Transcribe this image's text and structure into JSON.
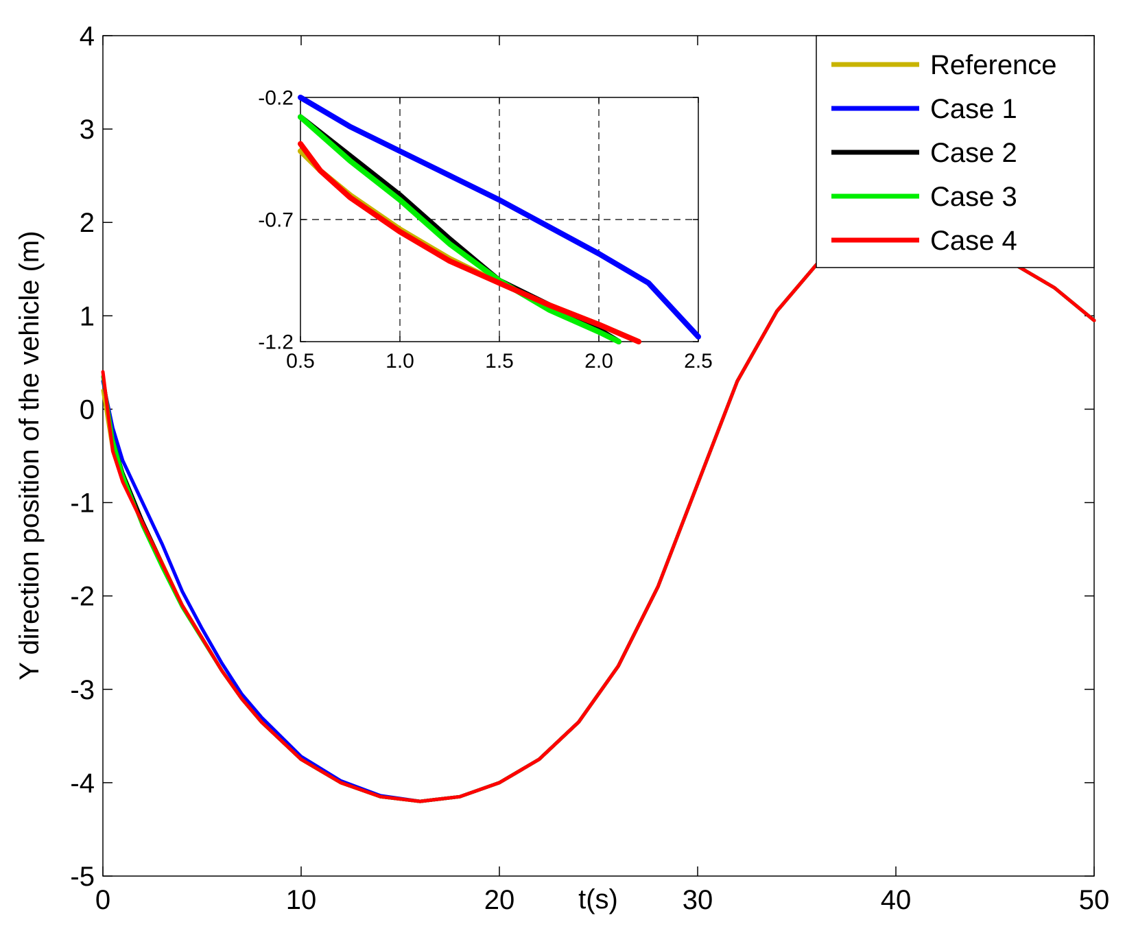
{
  "chart_data": [
    {
      "type": "line",
      "title": "",
      "xlabel": "t(s)",
      "ylabel": "Y direction position of the vehicle (m)",
      "xlim": [
        0,
        50
      ],
      "ylim": [
        -5,
        4
      ],
      "xticks": [
        "0",
        "10",
        "20",
        "30",
        "40",
        "50"
      ],
      "yticks": [
        "4",
        "3",
        "2",
        "1",
        "0",
        "-1",
        "-2",
        "-3",
        "-4",
        "-5"
      ],
      "grid": false,
      "legend_position": "top-right",
      "series": [
        {
          "name": "Reference",
          "color": "#c8b400",
          "x": [
            0,
            0.5,
            1,
            2,
            3,
            4,
            5,
            6,
            7,
            8,
            10,
            12,
            14,
            16,
            18,
            20,
            22,
            24,
            26,
            28,
            30,
            32,
            34,
            36,
            38,
            40,
            42,
            44,
            46,
            48,
            50
          ],
          "y": [
            0.2,
            -0.45,
            -0.75,
            -1.2,
            -1.65,
            -2.1,
            -2.45,
            -2.8,
            -3.1,
            -3.35,
            -3.75,
            -4.0,
            -4.15,
            -4.2,
            -4.15,
            -4.0,
            -3.75,
            -3.35,
            -2.75,
            -1.9,
            -0.8,
            0.3,
            1.05,
            1.55,
            1.8,
            1.85,
            1.8,
            1.7,
            1.55,
            1.3,
            0.95
          ]
        },
        {
          "name": "Case 1",
          "color": "#0000ff",
          "x": [
            0,
            0.5,
            1,
            2,
            3,
            4,
            5,
            6,
            7,
            8,
            10,
            12,
            14,
            16,
            18,
            20,
            22,
            24,
            26,
            28,
            30,
            32,
            34,
            36,
            38,
            40,
            42,
            44,
            46,
            48,
            50
          ],
          "y": [
            0.3,
            -0.2,
            -0.55,
            -1.0,
            -1.45,
            -1.95,
            -2.35,
            -2.72,
            -3.05,
            -3.3,
            -3.72,
            -3.98,
            -4.14,
            -4.2,
            -4.15,
            -4.0,
            -3.75,
            -3.35,
            -2.75,
            -1.9,
            -0.8,
            0.3,
            1.05,
            1.55,
            1.8,
            1.85,
            1.8,
            1.7,
            1.55,
            1.3,
            0.95
          ]
        },
        {
          "name": "Case 2",
          "color": "#000000",
          "x": [
            0,
            0.5,
            1,
            2,
            3,
            4,
            5,
            6,
            7,
            8,
            10,
            12,
            14,
            16,
            18,
            20,
            22,
            24,
            26,
            28,
            30,
            32,
            34,
            36,
            38,
            40,
            42,
            44,
            46,
            48,
            50
          ],
          "y": [
            0.35,
            -0.32,
            -0.68,
            -1.2,
            -1.66,
            -2.1,
            -2.45,
            -2.8,
            -3.1,
            -3.35,
            -3.75,
            -4.0,
            -4.15,
            -4.2,
            -4.15,
            -4.0,
            -3.75,
            -3.35,
            -2.75,
            -1.9,
            -0.8,
            0.3,
            1.05,
            1.55,
            1.8,
            1.85,
            1.8,
            1.7,
            1.55,
            1.3,
            0.95
          ]
        },
        {
          "name": "Case 3",
          "color": "#00ee00",
          "x": [
            0,
            0.5,
            1,
            2,
            3,
            4,
            5,
            6,
            7,
            8,
            10,
            12,
            14,
            16,
            18,
            20,
            22,
            24,
            26,
            28,
            30,
            32,
            34,
            36,
            38,
            40,
            42,
            44,
            46,
            48,
            50
          ],
          "y": [
            0.35,
            -0.32,
            -0.7,
            -1.25,
            -1.7,
            -2.12,
            -2.46,
            -2.8,
            -3.1,
            -3.35,
            -3.75,
            -4.0,
            -4.15,
            -4.2,
            -4.15,
            -4.0,
            -3.75,
            -3.35,
            -2.75,
            -1.9,
            -0.8,
            0.3,
            1.05,
            1.55,
            1.8,
            1.85,
            1.8,
            1.7,
            1.55,
            1.3,
            0.95
          ]
        },
        {
          "name": "Case 4",
          "color": "#ff0000",
          "x": [
            0,
            0.5,
            1,
            2,
            3,
            4,
            5,
            6,
            7,
            8,
            10,
            12,
            14,
            16,
            18,
            20,
            22,
            24,
            26,
            28,
            30,
            32,
            34,
            36,
            38,
            40,
            42,
            44,
            46,
            48,
            50
          ],
          "y": [
            0.4,
            -0.45,
            -0.78,
            -1.22,
            -1.66,
            -2.1,
            -2.45,
            -2.8,
            -3.1,
            -3.35,
            -3.75,
            -4.0,
            -4.15,
            -4.2,
            -4.15,
            -4.0,
            -3.75,
            -3.35,
            -2.75,
            -1.9,
            -0.8,
            0.3,
            1.05,
            1.55,
            1.8,
            1.85,
            1.8,
            1.7,
            1.55,
            1.3,
            0.95
          ]
        }
      ]
    },
    {
      "type": "line",
      "title": "",
      "xlabel": "",
      "ylabel": "",
      "xlim": [
        0.5,
        2.5
      ],
      "ylim": [
        -1.2,
        -0.2
      ],
      "xticks": [
        "0.5",
        "1.0",
        "1.5",
        "2.0",
        "2.5"
      ],
      "yticks": [
        "-0.2",
        "-0.7",
        "-1.2"
      ],
      "grid": true,
      "series": [
        {
          "name": "Reference",
          "color": "#c8b400",
          "x": [
            0.5,
            0.6,
            0.75,
            1.0,
            1.25,
            1.5,
            1.75,
            2.0,
            2.2
          ],
          "y": [
            -0.42,
            -0.5,
            -0.6,
            -0.74,
            -0.86,
            -0.96,
            -1.05,
            -1.13,
            -1.2
          ]
        },
        {
          "name": "Case 1",
          "color": "#0000ff",
          "x": [
            0.5,
            0.75,
            1.0,
            1.25,
            1.5,
            1.75,
            2.0,
            2.25,
            2.5
          ],
          "y": [
            -0.2,
            -0.32,
            -0.42,
            -0.52,
            -0.62,
            -0.73,
            -0.84,
            -0.96,
            -1.18
          ]
        },
        {
          "name": "Case 2",
          "color": "#000000",
          "x": [
            0.5,
            0.75,
            1.0,
            1.25,
            1.5,
            1.75,
            2.0,
            2.1
          ],
          "y": [
            -0.28,
            -0.44,
            -0.6,
            -0.78,
            -0.95,
            -1.05,
            -1.15,
            -1.2
          ]
        },
        {
          "name": "Case 3",
          "color": "#00ee00",
          "x": [
            0.5,
            0.75,
            1.0,
            1.25,
            1.5,
            1.75,
            2.0,
            2.1
          ],
          "y": [
            -0.28,
            -0.46,
            -0.62,
            -0.8,
            -0.95,
            -1.07,
            -1.16,
            -1.2
          ]
        },
        {
          "name": "Case 4",
          "color": "#ff0000",
          "x": [
            0.5,
            0.6,
            0.75,
            1.0,
            1.25,
            1.5,
            1.75,
            2.0,
            2.2
          ],
          "y": [
            -0.39,
            -0.5,
            -0.61,
            -0.75,
            -0.87,
            -0.96,
            -1.05,
            -1.13,
            -1.2
          ]
        }
      ]
    }
  ]
}
